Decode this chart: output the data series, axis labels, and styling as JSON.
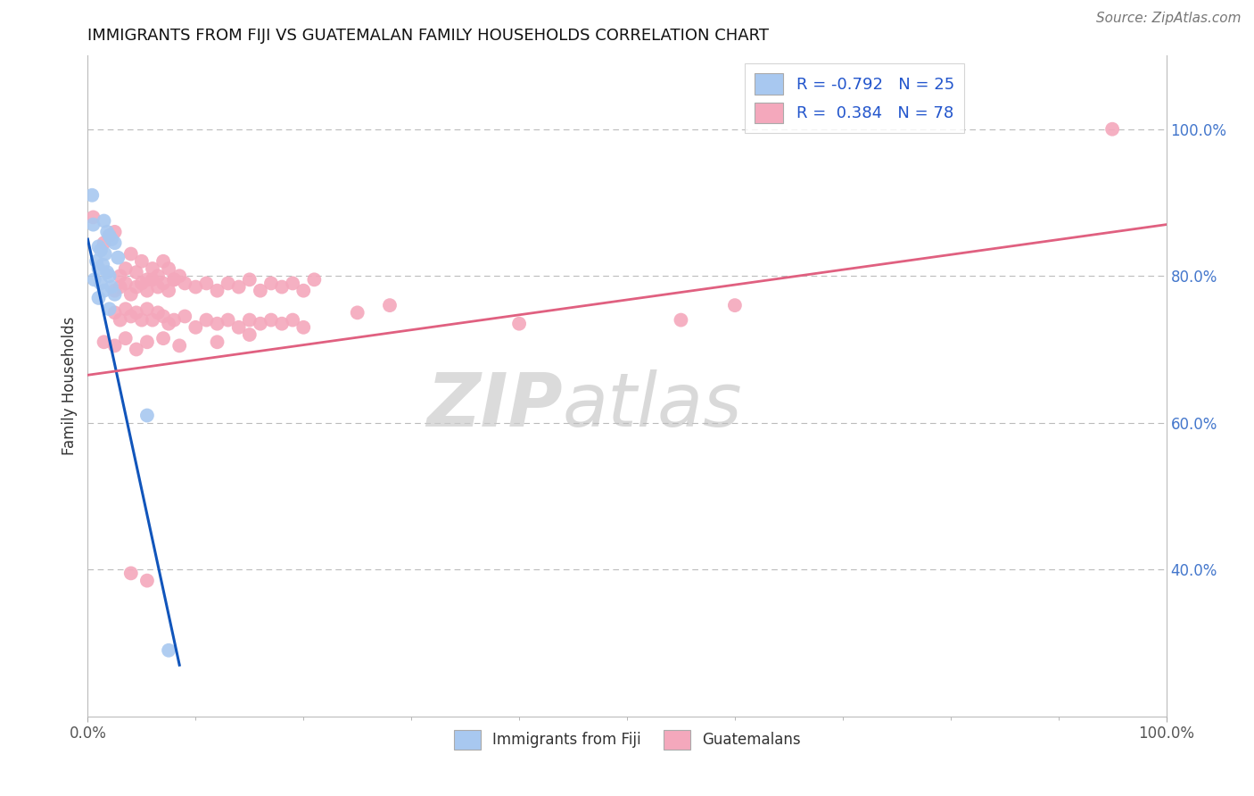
{
  "title": "IMMIGRANTS FROM FIJI VS GUATEMALAN FAMILY HOUSEHOLDS CORRELATION CHART",
  "source": "Source: ZipAtlas.com",
  "ylabel": "Family Households",
  "fiji_color": "#A8C8F0",
  "guatemalan_color": "#F4A8BC",
  "fiji_line_color": "#1155BB",
  "guatemalan_line_color": "#E06080",
  "fiji_scatter": [
    [
      0.5,
      87.0
    ],
    [
      1.5,
      87.5
    ],
    [
      1.8,
      86.0
    ],
    [
      2.0,
      85.5
    ],
    [
      2.2,
      85.0
    ],
    [
      2.5,
      84.5
    ],
    [
      1.0,
      84.0
    ],
    [
      1.2,
      83.5
    ],
    [
      1.6,
      83.0
    ],
    [
      2.8,
      82.5
    ],
    [
      0.8,
      82.0
    ],
    [
      1.4,
      81.5
    ],
    [
      1.0,
      81.0
    ],
    [
      1.8,
      80.5
    ],
    [
      2.0,
      80.0
    ],
    [
      0.6,
      79.5
    ],
    [
      1.2,
      79.0
    ],
    [
      2.2,
      78.5
    ],
    [
      1.5,
      78.0
    ],
    [
      2.5,
      77.5
    ],
    [
      0.4,
      91.0
    ],
    [
      1.0,
      77.0
    ],
    [
      2.0,
      75.5
    ],
    [
      5.5,
      61.0
    ],
    [
      7.5,
      29.0
    ]
  ],
  "guatemalan_scatter": [
    [
      1.5,
      84.5
    ],
    [
      2.0,
      85.5
    ],
    [
      2.5,
      86.0
    ],
    [
      3.0,
      80.0
    ],
    [
      3.5,
      81.0
    ],
    [
      4.0,
      83.0
    ],
    [
      4.5,
      80.5
    ],
    [
      5.0,
      82.0
    ],
    [
      5.5,
      79.5
    ],
    [
      6.0,
      81.0
    ],
    [
      6.5,
      80.0
    ],
    [
      7.0,
      82.0
    ],
    [
      7.5,
      81.0
    ],
    [
      8.0,
      79.5
    ],
    [
      8.5,
      80.0
    ],
    [
      2.5,
      78.0
    ],
    [
      3.0,
      78.5
    ],
    [
      3.5,
      79.0
    ],
    [
      4.0,
      77.5
    ],
    [
      4.5,
      78.5
    ],
    [
      5.0,
      79.0
    ],
    [
      5.5,
      78.0
    ],
    [
      6.0,
      79.5
    ],
    [
      6.5,
      78.5
    ],
    [
      7.0,
      79.0
    ],
    [
      7.5,
      78.0
    ],
    [
      8.0,
      79.5
    ],
    [
      9.0,
      79.0
    ],
    [
      10.0,
      78.5
    ],
    [
      11.0,
      79.0
    ],
    [
      12.0,
      78.0
    ],
    [
      13.0,
      79.0
    ],
    [
      14.0,
      78.5
    ],
    [
      15.0,
      79.5
    ],
    [
      16.0,
      78.0
    ],
    [
      17.0,
      79.0
    ],
    [
      18.0,
      78.5
    ],
    [
      19.0,
      79.0
    ],
    [
      20.0,
      78.0
    ],
    [
      21.0,
      79.5
    ],
    [
      25.0,
      75.0
    ],
    [
      28.0,
      76.0
    ],
    [
      2.5,
      75.0
    ],
    [
      3.0,
      74.0
    ],
    [
      3.5,
      75.5
    ],
    [
      4.0,
      74.5
    ],
    [
      4.5,
      75.0
    ],
    [
      5.0,
      74.0
    ],
    [
      5.5,
      75.5
    ],
    [
      6.0,
      74.0
    ],
    [
      6.5,
      75.0
    ],
    [
      7.0,
      74.5
    ],
    [
      7.5,
      73.5
    ],
    [
      8.0,
      74.0
    ],
    [
      9.0,
      74.5
    ],
    [
      10.0,
      73.0
    ],
    [
      11.0,
      74.0
    ],
    [
      12.0,
      73.5
    ],
    [
      13.0,
      74.0
    ],
    [
      14.0,
      73.0
    ],
    [
      15.0,
      74.0
    ],
    [
      16.0,
      73.5
    ],
    [
      17.0,
      74.0
    ],
    [
      18.0,
      73.5
    ],
    [
      19.0,
      74.0
    ],
    [
      20.0,
      73.0
    ],
    [
      1.5,
      71.0
    ],
    [
      2.5,
      70.5
    ],
    [
      3.5,
      71.5
    ],
    [
      4.5,
      70.0
    ],
    [
      5.5,
      71.0
    ],
    [
      7.0,
      71.5
    ],
    [
      8.5,
      70.5
    ],
    [
      12.0,
      71.0
    ],
    [
      15.0,
      72.0
    ],
    [
      4.0,
      39.5
    ],
    [
      5.5,
      38.5
    ],
    [
      95.0,
      100.0
    ],
    [
      60.0,
      76.0
    ],
    [
      40.0,
      73.5
    ],
    [
      55.0,
      74.0
    ],
    [
      0.5,
      88.0
    ]
  ],
  "xlim": [
    0.0,
    100.0
  ],
  "ylim": [
    20.0,
    110.0
  ],
  "fiji_line_x": [
    0.0,
    8.5
  ],
  "fiji_line_y": [
    85.0,
    27.0
  ],
  "guatemalan_line_x": [
    0.0,
    100.0
  ],
  "guatemalan_line_y": [
    66.5,
    87.0
  ],
  "yticks": [
    40.0,
    60.0,
    80.0,
    100.0
  ],
  "ytick_labels": [
    "40.0%",
    "60.0%",
    "80.0%",
    "100.0%"
  ],
  "xtick_positions": [
    0.0,
    100.0
  ],
  "xtick_labels": [
    "0.0%",
    "100.0%"
  ],
  "grid_lines": [
    40.0,
    60.0,
    80.0,
    100.0
  ]
}
